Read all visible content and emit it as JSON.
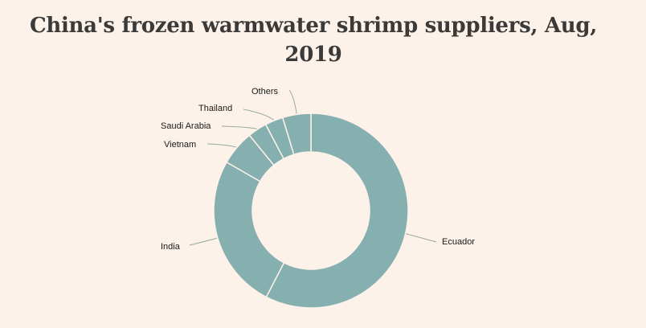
{
  "chart_data": {
    "type": "pie",
    "variant": "donut",
    "title": "China's frozen warmwater shrimp suppliers, Aug, 2019",
    "title_lines": [
      "China's frozen warmwater shrimp suppliers, Aug,",
      "2019"
    ],
    "unit": "percent (estimated from slice angles)",
    "categories": [
      "Ecuador",
      "India",
      "Vietnam",
      "Saudi Arabia",
      "Thailand",
      "Others"
    ],
    "values": [
      57.6,
      25.7,
      5.8,
      3.2,
      3.0,
      4.7
    ],
    "start": "top, clockwise",
    "colors": {
      "slice": "#86afaf",
      "separator": "#fcf2ea",
      "leader": "#9aa8a4",
      "background": "#fcf2ea"
    },
    "legend": "none (direct labels with leader lines)"
  }
}
